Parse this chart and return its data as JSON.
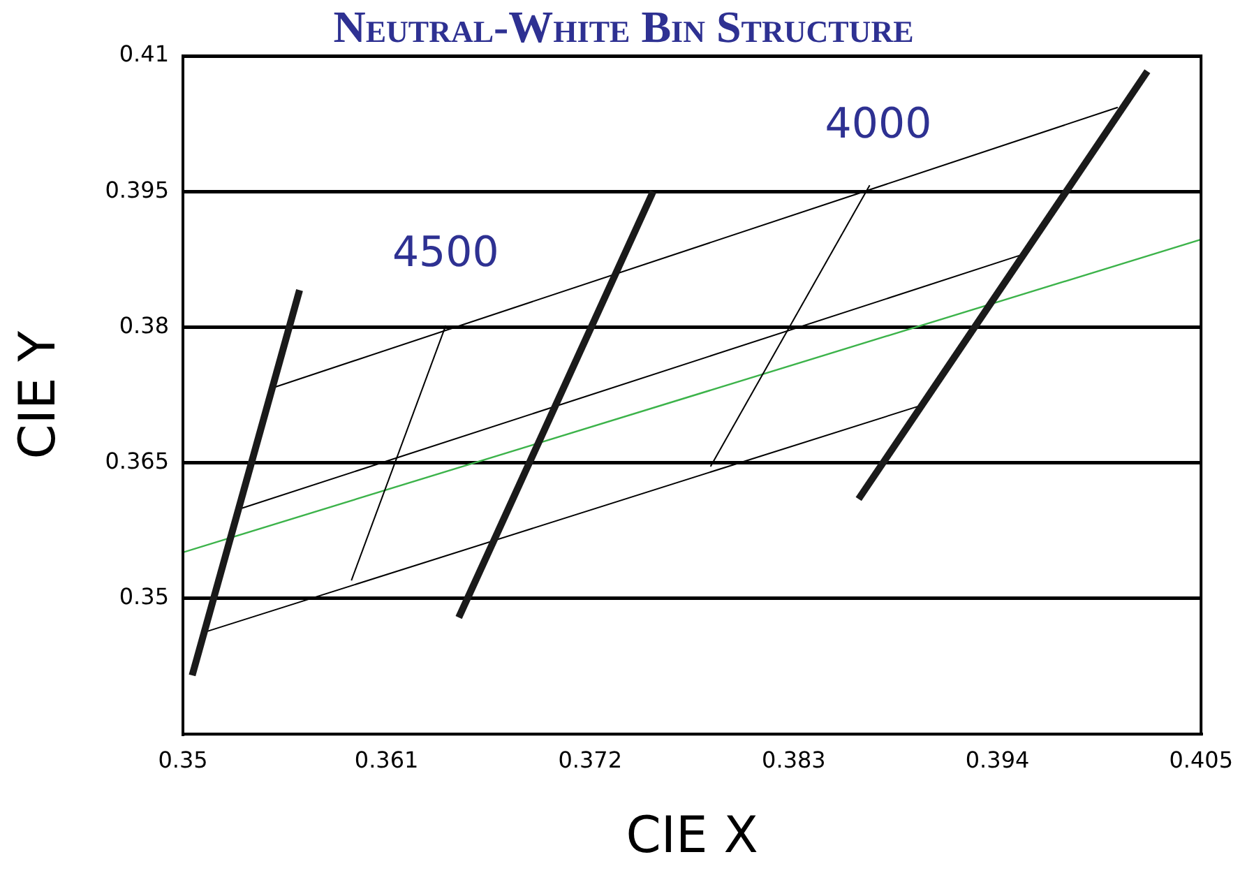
{
  "chart_data": {
    "type": "line",
    "title": "Neutral-White Bin Structure",
    "xlabel": "CIE X",
    "ylabel": "CIE Y",
    "xlim": [
      0.35,
      0.405
    ],
    "xticks": [
      0.35,
      0.361,
      0.372,
      0.383,
      0.394,
      0.405
    ],
    "ylim": [
      0.335,
      0.41
    ],
    "yticks": [
      0.35,
      0.365,
      0.38,
      0.395,
      0.41
    ],
    "grid": "y",
    "legend": false,
    "marker": "none",
    "line_style": "solid",
    "annotations": [
      "4500",
      "4000"
    ],
    "series": [
      {
        "color": "#1a1a1a",
        "x": [
          0.3505,
          0.3563
        ],
        "values": [
          0.3415,
          0.3841
        ]
      },
      {
        "color": "#1a1a1a",
        "x": [
          0.3649,
          0.3754
        ],
        "values": [
          0.3479,
          0.395
        ]
      },
      {
        "color": "#1a1a1a",
        "x": [
          0.3865,
          0.4021
        ],
        "values": [
          0.361,
          0.4083
        ]
      },
      {
        "color": "#000000",
        "x": [
          0.355,
          0.4005
        ],
        "values": [
          0.3734,
          0.4043
        ]
      },
      {
        "color": "#000000",
        "x": [
          0.3532,
          0.3953
        ],
        "values": [
          0.36,
          0.388
        ]
      },
      {
        "color": "#000000",
        "x": [
          0.3512,
          0.3898
        ],
        "values": [
          0.3463,
          0.3713
        ]
      },
      {
        "color": "#000000",
        "x": [
          0.3642,
          0.3591
        ],
        "values": [
          0.3802,
          0.352
        ]
      },
      {
        "color": "#000000",
        "x": [
          0.3871,
          0.3785
        ],
        "values": [
          0.3957,
          0.3646
        ]
      },
      {
        "color": "#3cb34a",
        "x": [
          0.35,
          0.405
        ],
        "values": [
          0.3551,
          0.3897
        ]
      }
    ]
  }
}
